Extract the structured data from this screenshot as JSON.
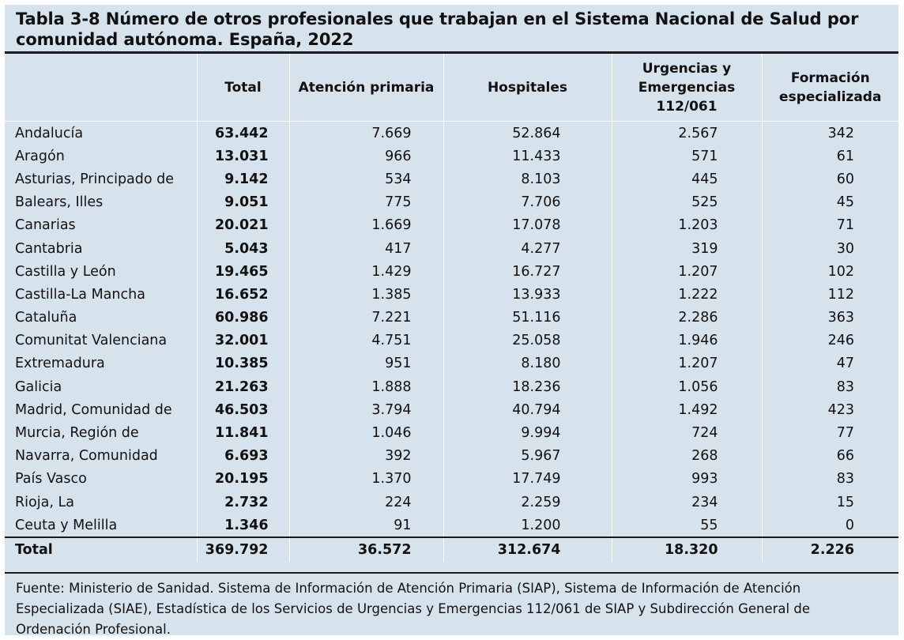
{
  "title": {
    "line1": "Tabla 3-8 Número de otros profesionales que trabajan en el Sistema Nacional de Salud por",
    "line2": "comunidad autónoma. España, 2022"
  },
  "headers": {
    "region": "",
    "total": "Total",
    "atencion_primaria": "Atención primaria",
    "hospitales": "Hospitales",
    "urgencias": [
      "Urgencias y",
      "Emergencias",
      "112/061"
    ],
    "formacion": [
      "Formación",
      "especializada"
    ]
  },
  "rows": [
    {
      "region": "Andalucía",
      "total": "63.442",
      "ap": "7.669",
      "hosp": "52.864",
      "urg": "2.567",
      "form": "342"
    },
    {
      "region": "Aragón",
      "total": "13.031",
      "ap": "966",
      "hosp": "11.433",
      "urg": "571",
      "form": "61"
    },
    {
      "region": "Asturias, Principado de",
      "total": "9.142",
      "ap": "534",
      "hosp": "8.103",
      "urg": "445",
      "form": "60"
    },
    {
      "region": "Balears, Illes",
      "total": "9.051",
      "ap": "775",
      "hosp": "7.706",
      "urg": "525",
      "form": "45"
    },
    {
      "region": "Canarias",
      "total": "20.021",
      "ap": "1.669",
      "hosp": "17.078",
      "urg": "1.203",
      "form": "71"
    },
    {
      "region": "Cantabria",
      "total": "5.043",
      "ap": "417",
      "hosp": "4.277",
      "urg": "319",
      "form": "30"
    },
    {
      "region": "Castilla y León",
      "total": "19.465",
      "ap": "1.429",
      "hosp": "16.727",
      "urg": "1.207",
      "form": "102"
    },
    {
      "region": "Castilla-La Mancha",
      "total": "16.652",
      "ap": "1.385",
      "hosp": "13.933",
      "urg": "1.222",
      "form": "112"
    },
    {
      "region": "Cataluña",
      "total": "60.986",
      "ap": "7.221",
      "hosp": "51.116",
      "urg": "2.286",
      "form": "363"
    },
    {
      "region": "Comunitat Valenciana",
      "total": "32.001",
      "ap": "4.751",
      "hosp": "25.058",
      "urg": "1.946",
      "form": "246"
    },
    {
      "region": "Extremadura",
      "total": "10.385",
      "ap": "951",
      "hosp": "8.180",
      "urg": "1.207",
      "form": "47"
    },
    {
      "region": "Galicia",
      "total": "21.263",
      "ap": "1.888",
      "hosp": "18.236",
      "urg": "1.056",
      "form": "83"
    },
    {
      "region": "Madrid, Comunidad de",
      "total": "46.503",
      "ap": "3.794",
      "hosp": "40.794",
      "urg": "1.492",
      "form": "423"
    },
    {
      "region": "Murcia, Región de",
      "total": "11.841",
      "ap": "1.046",
      "hosp": "9.994",
      "urg": "724",
      "form": "77"
    },
    {
      "region": "Navarra, Comunidad",
      "total": "6.693",
      "ap": "392",
      "hosp": "5.967",
      "urg": "268",
      "form": "66"
    },
    {
      "region": "País Vasco",
      "total": "20.195",
      "ap": "1.370",
      "hosp": "17.749",
      "urg": "993",
      "form": "83"
    },
    {
      "region": "Rioja, La",
      "total": "2.732",
      "ap": "224",
      "hosp": "2.259",
      "urg": "234",
      "form": "15"
    },
    {
      "region": "Ceuta y Melilla",
      "total": "1.346",
      "ap": "91",
      "hosp": "1.200",
      "urg": "55",
      "form": "0"
    }
  ],
  "totals": {
    "region": "Total",
    "total": "369.792",
    "ap": "36.572",
    "hosp": "312.674",
    "urg": "18.320",
    "form": "2.226"
  },
  "footnote": "Fuente: Ministerio de Sanidad. Sistema de Información de Atención Primaria (SIAP), Sistema de Información de Atención Especializada (SIAE), Estadística de los Servicios de Urgencias y Emergencias 112/061 de SIAP y Subdirección General de Ordenación Profesional.",
  "colors": {
    "background": "#d6e3ed",
    "rule": "#1a1a1a",
    "cell_divider": "#ffffff"
  }
}
